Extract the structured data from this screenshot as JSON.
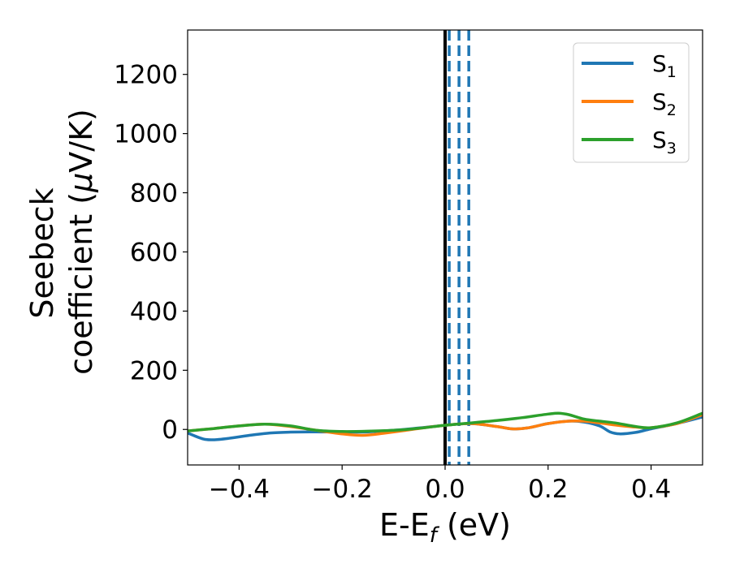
{
  "chart_data": {
    "type": "line",
    "xlabel": {
      "main": "E-E",
      "sub": "f",
      "unit": " (eV)"
    },
    "ylabel": {
      "line1": "Seebeck",
      "line2_prefix": "coefficient  (",
      "mu": "μ",
      "line2_suffix": "V/K)"
    },
    "xlim": [
      -0.5,
      0.5
    ],
    "ylim": [
      -120,
      1350
    ],
    "x_ticks": [
      -0.4,
      -0.2,
      0.0,
      0.2,
      0.4
    ],
    "x_tick_labels": [
      "−0.4",
      "−0.2",
      "0.0",
      "0.2",
      "0.4"
    ],
    "y_ticks": [
      0,
      200,
      400,
      600,
      800,
      1000,
      1200
    ],
    "y_tick_labels": [
      "0",
      "200",
      "400",
      "600",
      "800",
      "1000",
      "1200"
    ],
    "grid": false,
    "legend_position": "top-right",
    "vertical_lines": [
      {
        "x": 0.0,
        "style": "solid",
        "color": "#000000"
      },
      {
        "x": 0.008,
        "style": "dashed",
        "color": "#1f77b4"
      },
      {
        "x": 0.027,
        "style": "dashed",
        "color": "#1f77b4"
      },
      {
        "x": 0.046,
        "style": "dashed",
        "color": "#1f77b4"
      }
    ],
    "series": [
      {
        "name": "S",
        "sub": "1",
        "color": "#1f77b4",
        "x": [
          -0.5,
          -0.47,
          -0.45,
          -0.42,
          -0.38,
          -0.34,
          -0.3,
          -0.25,
          -0.2,
          -0.15,
          -0.1,
          -0.05,
          0.0,
          0.05,
          0.1,
          0.13,
          0.16,
          0.2,
          0.24,
          0.27,
          0.3,
          0.32,
          0.34,
          0.37,
          0.4,
          0.45,
          0.5
        ],
        "y": [
          -12,
          -32,
          -35,
          -30,
          -20,
          -12,
          -9,
          -8,
          -9,
          -8,
          -3,
          5,
          14,
          20,
          10,
          2,
          5,
          20,
          28,
          25,
          12,
          -8,
          -15,
          -10,
          2,
          20,
          42
        ]
      },
      {
        "name": "S",
        "sub": "2",
        "color": "#ff7f0e",
        "x": [
          -0.5,
          -0.45,
          -0.4,
          -0.35,
          -0.3,
          -0.25,
          -0.2,
          -0.16,
          -0.12,
          -0.08,
          -0.04,
          0.0,
          0.05,
          0.1,
          0.13,
          0.16,
          0.2,
          0.24,
          0.27,
          0.3,
          0.33,
          0.37,
          0.4,
          0.45,
          0.5
        ],
        "y": [
          -5,
          3,
          12,
          18,
          10,
          -3,
          -15,
          -20,
          -13,
          -4,
          6,
          14,
          20,
          10,
          2,
          5,
          20,
          28,
          28,
          22,
          15,
          8,
          6,
          20,
          50
        ]
      },
      {
        "name": "S",
        "sub": "3",
        "color": "#2ca02c",
        "x": [
          -0.5,
          -0.45,
          -0.4,
          -0.35,
          -0.3,
          -0.25,
          -0.2,
          -0.15,
          -0.1,
          -0.05,
          0.0,
          0.05,
          0.1,
          0.15,
          0.2,
          0.22,
          0.24,
          0.27,
          0.3,
          0.33,
          0.37,
          0.4,
          0.45,
          0.5
        ],
        "y": [
          -5,
          3,
          12,
          18,
          12,
          -3,
          -7,
          -6,
          -3,
          4,
          14,
          22,
          30,
          40,
          52,
          55,
          50,
          35,
          28,
          22,
          10,
          6,
          22,
          55
        ]
      }
    ]
  }
}
